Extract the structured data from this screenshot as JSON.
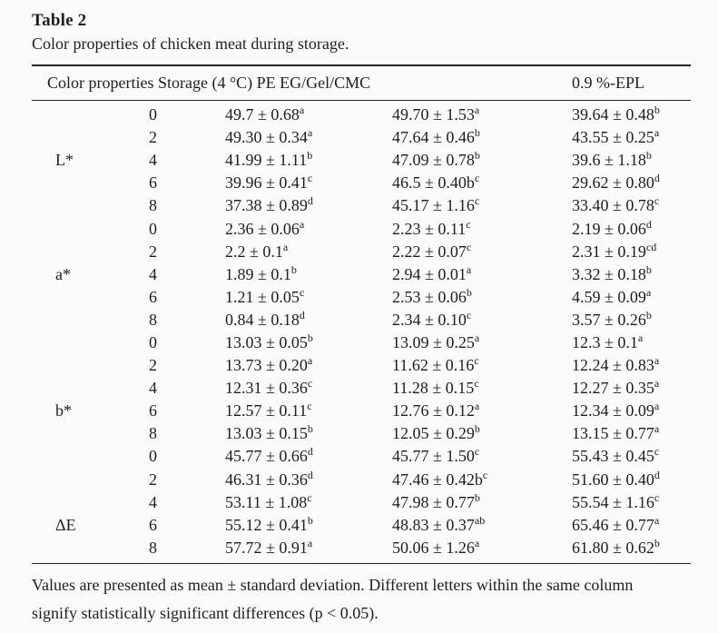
{
  "page": {
    "background": "#fbfbfb",
    "text_color": "#1e1e1e",
    "rule_color": "#262626"
  },
  "title": "Table 2",
  "caption": "Color properties of chicken meat during storage.",
  "header": {
    "left": "Color properties Storage (4 °C) PE EG/Gel/CMC",
    "right": "0.9 %-EPL"
  },
  "table": {
    "rows": [
      {
        "label": "",
        "day": "0",
        "cells": [
          {
            "v": "49.7 ± 0.68",
            "s": "a"
          },
          {
            "v": "49.70 ± 1.53",
            "s": "a"
          },
          {
            "v": "39.64 ± 0.48",
            "s": "b"
          }
        ]
      },
      {
        "label": "",
        "day": "2",
        "cells": [
          {
            "v": "49.30 ± 0.34",
            "s": "a"
          },
          {
            "v": "47.64 ± 0.46",
            "s": "b"
          },
          {
            "v": "43.55 ± 0.25",
            "s": "a"
          }
        ]
      },
      {
        "label": "L*",
        "day": "4",
        "cells": [
          {
            "v": "41.99 ± 1.11",
            "s": "b"
          },
          {
            "v": "47.09 ± 0.78",
            "s": "b"
          },
          {
            "v": "39.6 ± 1.18",
            "s": "b"
          }
        ]
      },
      {
        "label": "",
        "day": "6",
        "cells": [
          {
            "v": "39.96 ± 0.41",
            "s": "c"
          },
          {
            "v": "46.5 ± 0.40b",
            "s": "c"
          },
          {
            "v": "29.62 ± 0.80",
            "s": "d"
          }
        ]
      },
      {
        "label": "",
        "day": "8",
        "cells": [
          {
            "v": "37.38 ± 0.89",
            "s": "d"
          },
          {
            "v": "45.17 ± 1.16",
            "s": "c"
          },
          {
            "v": "33.40 ± 0.78",
            "s": "c"
          }
        ]
      },
      {
        "label": "",
        "day": "0",
        "cells": [
          {
            "v": "2.36 ± 0.06",
            "s": "a"
          },
          {
            "v": "2.23 ± 0.11",
            "s": "c"
          },
          {
            "v": "2.19 ± 0.06",
            "s": "d"
          }
        ]
      },
      {
        "label": "",
        "day": "2",
        "cells": [
          {
            "v": "2.2 ± 0.1",
            "s": "a"
          },
          {
            "v": "2.22 ± 0.07",
            "s": "c"
          },
          {
            "v": "2.31 ± 0.19",
            "s": "cd"
          }
        ]
      },
      {
        "label": "a*",
        "day": "4",
        "cells": [
          {
            "v": "1.89 ± 0.1",
            "s": "b"
          },
          {
            "v": "2.94 ± 0.01",
            "s": "a"
          },
          {
            "v": "3.32 ± 0.18",
            "s": "b"
          }
        ]
      },
      {
        "label": "",
        "day": "6",
        "cells": [
          {
            "v": "1.21 ± 0.05",
            "s": "c"
          },
          {
            "v": "2.53 ± 0.06",
            "s": "b"
          },
          {
            "v": "4.59 ± 0.09",
            "s": "a"
          }
        ]
      },
      {
        "label": "",
        "day": "8",
        "cells": [
          {
            "v": "0.84 ± 0.18",
            "s": "d"
          },
          {
            "v": "2.34 ± 0.10",
            "s": "c"
          },
          {
            "v": "3.57 ± 0.26",
            "s": "b"
          }
        ]
      },
      {
        "label": "",
        "day": "0",
        "cells": [
          {
            "v": "13.03 ± 0.05",
            "s": "b"
          },
          {
            "v": "13.09 ± 0.25",
            "s": "a"
          },
          {
            "v": "12.3 ± 0.1",
            "s": "a"
          }
        ]
      },
      {
        "label": "",
        "day": "2",
        "cells": [
          {
            "v": "13.73 ± 0.20",
            "s": "a"
          },
          {
            "v": "11.62 ± 0.16",
            "s": "c"
          },
          {
            "v": "12.24 ± 0.83",
            "s": "a"
          }
        ]
      },
      {
        "label": "",
        "day": "4",
        "cells": [
          {
            "v": "12.31 ± 0.36",
            "s": "c"
          },
          {
            "v": "11.28 ± 0.15",
            "s": "c"
          },
          {
            "v": "12.27 ± 0.35",
            "s": "a"
          }
        ]
      },
      {
        "label": "b*",
        "day": "6",
        "cells": [
          {
            "v": "12.57 ± 0.11",
            "s": "c"
          },
          {
            "v": "12.76 ± 0.12",
            "s": "a"
          },
          {
            "v": "12.34 ± 0.09",
            "s": "a"
          }
        ]
      },
      {
        "label": "",
        "day": "8",
        "cells": [
          {
            "v": "13.03 ± 0.15",
            "s": "b"
          },
          {
            "v": "12.05 ± 0.29",
            "s": "b"
          },
          {
            "v": "13.15 ± 0.77",
            "s": "a"
          }
        ]
      },
      {
        "label": "",
        "day": "0",
        "cells": [
          {
            "v": "45.77 ± 0.66",
            "s": "d"
          },
          {
            "v": "45.77 ± 1.50",
            "s": "c"
          },
          {
            "v": "55.43 ± 0.45",
            "s": "c"
          }
        ]
      },
      {
        "label": "",
        "day": "2",
        "cells": [
          {
            "v": "46.31 ± 0.36",
            "s": "d"
          },
          {
            "v": "47.46 ± 0.42b",
            "s": "c"
          },
          {
            "v": "51.60 ± 0.40",
            "s": "d"
          }
        ]
      },
      {
        "label": "",
        "day": "4",
        "cells": [
          {
            "v": "53.11 ± 1.08",
            "s": "c"
          },
          {
            "v": "47.98 ± 0.77",
            "s": "b"
          },
          {
            "v": "55.54 ± 1.16",
            "s": "c"
          }
        ]
      },
      {
        "label": "ΔE",
        "day": "6",
        "cells": [
          {
            "v": "55.12 ± 0.41",
            "s": "b"
          },
          {
            "v": "48.83 ± 0.37",
            "s": "ab"
          },
          {
            "v": "65.46 ± 0.77",
            "s": "a"
          }
        ]
      },
      {
        "label": "",
        "day": "8",
        "cells": [
          {
            "v": "57.72 ± 0.91",
            "s": "a"
          },
          {
            "v": "50.06 ± 1.26",
            "s": "a"
          },
          {
            "v": "61.80 ± 0.62",
            "s": "b"
          }
        ]
      }
    ]
  },
  "footnote": "Values are presented as mean ± standard deviation. Different letters within the same column signify statistically significant differences (p < 0.05)."
}
